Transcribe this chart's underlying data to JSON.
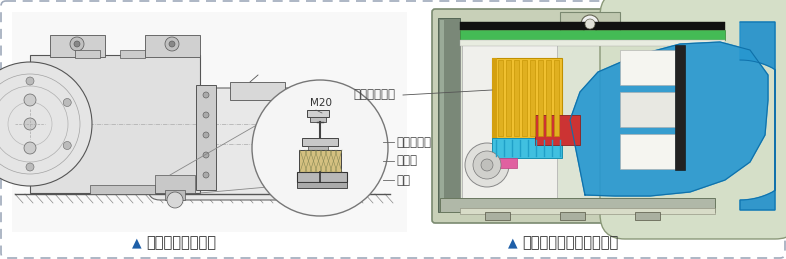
{
  "bg_color": "#ffffff",
  "border_color": "#a0aabb",
  "caption_color": "#333333",
  "triangle_color": "#1e5fa8",
  "caption_fontsize": 10.5,
  "label_color": "#444444",
  "label_fontsize": 8.5,
  "left_caption_text": "减震垫安装示意图",
  "right_caption_text": "压缩机内置排气消声设计",
  "label_M20": "M20",
  "label_yasuoji": "压缩机地脚",
  "label_jianzhen": "减震垫",
  "label_jizuo": "基座",
  "label_xisheng": "消声结构设计",
  "fig_width": 7.86,
  "fig_height": 2.59,
  "dpi": 100
}
